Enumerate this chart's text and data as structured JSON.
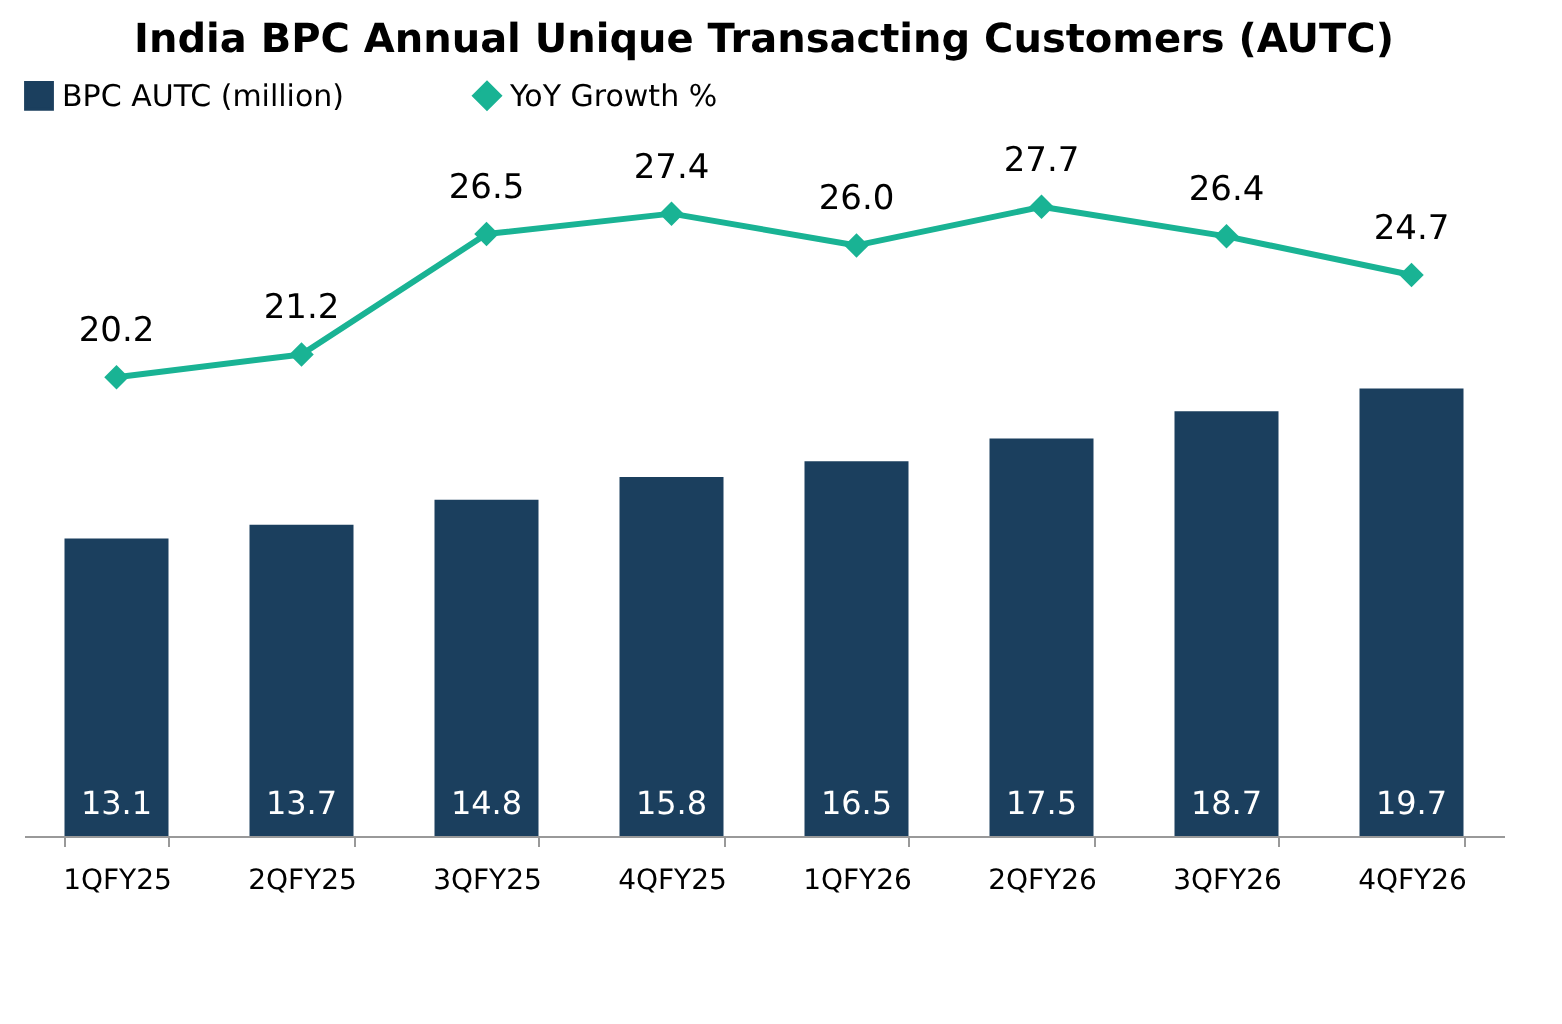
{
  "chart_data": {
    "type": "bar",
    "title": "India BPC Annual Unique Transacting Customers (AUTC)",
    "categories": [
      "1QFY25",
      "2QFY25",
      "3QFY25",
      "4QFY25",
      "1QFY26",
      "2QFY26",
      "3QFY26",
      "4QFY26"
    ],
    "series": [
      {
        "name": "BPC AUTC (million)",
        "type": "bar",
        "color": "#1b3f5e",
        "values": [
          13.1,
          13.7,
          14.8,
          15.8,
          16.5,
          17.5,
          18.7,
          19.7
        ],
        "value_labels": [
          "13.1",
          "13.7",
          "14.8",
          "15.8",
          "16.5",
          "17.5",
          "18.7",
          "19.7"
        ]
      },
      {
        "name": "YoY Growth %",
        "type": "line",
        "color": "#19b394",
        "marker": "diamond",
        "values": [
          20.2,
          21.2,
          26.5,
          27.4,
          26.0,
          27.7,
          26.4,
          24.7
        ],
        "value_labels": [
          "20.2",
          "21.2",
          "26.5",
          "27.4",
          "26.0",
          "27.7",
          "26.4",
          "24.7"
        ]
      }
    ],
    "legend": "top",
    "tick_labels": "x"
  }
}
